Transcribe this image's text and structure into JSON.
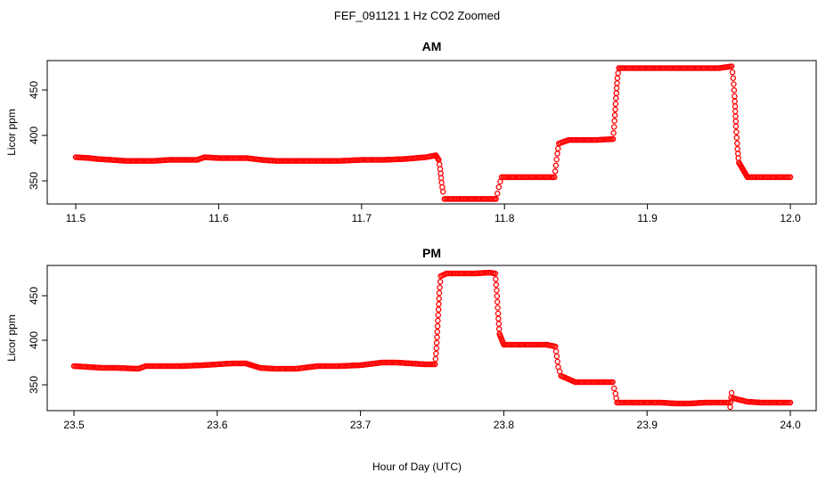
{
  "figure": {
    "title": "FEF_091121  1 Hz CO2 Zoomed",
    "xlabel": "Hour of Day (UTC)"
  },
  "chart_data": [
    {
      "type": "scatter",
      "title": "AM",
      "xlabel": "",
      "ylabel": "Licor ppm",
      "xlim": [
        11.5,
        12.0
      ],
      "ylim": [
        325,
        480
      ],
      "xticks": [
        "11.5",
        "11.6",
        "11.7",
        "11.8",
        "11.9",
        "12.0"
      ],
      "yticks": [
        "350",
        "400",
        "450"
      ],
      "point_color": "#ff0000",
      "marker": "open-circle",
      "x": [
        11.5,
        11.51,
        11.515,
        11.525,
        11.535,
        11.545,
        11.555,
        11.565,
        11.575,
        11.585,
        11.59,
        11.6,
        11.61,
        11.62,
        11.63,
        11.64,
        11.655,
        11.67,
        11.685,
        11.7,
        11.715,
        11.73,
        11.745,
        11.752,
        11.754,
        11.755,
        11.756,
        11.757,
        11.758,
        11.765,
        11.775,
        11.785,
        11.794,
        11.795,
        11.796,
        11.797,
        11.798,
        11.805,
        11.815,
        11.825,
        11.835,
        11.836,
        11.837,
        11.838,
        11.845,
        11.855,
        11.865,
        11.876,
        11.877,
        11.878,
        11.879,
        11.88,
        11.89,
        11.9,
        11.91,
        11.92,
        11.93,
        11.94,
        11.95,
        11.959,
        11.96,
        11.961,
        11.962,
        11.963,
        11.964,
        11.97,
        11.98,
        11.99,
        12.0
      ],
      "y": [
        376,
        375,
        374,
        373,
        372,
        372,
        372,
        373,
        373,
        373,
        376,
        375,
        375,
        375,
        373,
        372,
        372,
        372,
        372,
        373,
        373,
        374,
        376,
        378,
        373,
        363,
        348,
        338,
        330,
        330,
        330,
        330,
        330,
        336,
        343,
        349,
        354,
        354,
        354,
        354,
        354,
        367,
        380,
        391,
        395,
        395,
        395,
        396,
        416,
        441,
        463,
        474,
        474,
        474,
        474,
        474,
        474,
        474,
        474,
        476,
        463,
        443,
        410,
        385,
        370,
        354,
        354,
        354,
        354
      ]
    },
    {
      "type": "scatter",
      "title": "PM",
      "xlabel": "",
      "ylabel": "Licor ppm",
      "xlim": [
        23.5,
        24.0
      ],
      "ylim": [
        318,
        480
      ],
      "xticks": [
        "23.5",
        "23.6",
        "23.7",
        "23.8",
        "23.9",
        "24.0"
      ],
      "yticks": [
        "350",
        "400",
        "450"
      ],
      "point_color": "#ff0000",
      "marker": "open-circle",
      "x": [
        23.5,
        23.51,
        23.52,
        23.53,
        23.545,
        23.55,
        23.56,
        23.575,
        23.59,
        23.6,
        23.61,
        23.62,
        23.63,
        23.64,
        23.655,
        23.67,
        23.685,
        23.7,
        23.715,
        23.725,
        23.735,
        23.745,
        23.752,
        23.753,
        23.754,
        23.755,
        23.756,
        23.76,
        23.77,
        23.78,
        23.79,
        23.794,
        23.795,
        23.796,
        23.797,
        23.8,
        23.81,
        23.82,
        23.83,
        23.836,
        23.837,
        23.838,
        23.84,
        23.85,
        23.86,
        23.87,
        23.876,
        23.877,
        23.878,
        23.879,
        23.89,
        23.9,
        23.91,
        23.92,
        23.93,
        23.94,
        23.95,
        23.957,
        23.958,
        23.959,
        23.96,
        23.97,
        23.98,
        23.99,
        24.0
      ],
      "y": [
        371,
        370,
        369,
        369,
        368,
        371,
        371,
        371,
        372,
        373,
        374,
        374,
        369,
        368,
        368,
        371,
        371,
        372,
        375,
        375,
        374,
        373,
        373,
        391,
        422,
        453,
        472,
        475,
        475,
        475,
        476,
        475,
        456,
        430,
        407,
        395,
        395,
        395,
        395,
        393,
        382,
        370,
        360,
        353,
        353,
        353,
        353,
        346,
        340,
        330,
        330,
        330,
        330,
        329,
        329,
        330,
        330,
        330,
        325,
        341,
        335,
        331,
        330,
        330,
        330
      ]
    }
  ]
}
